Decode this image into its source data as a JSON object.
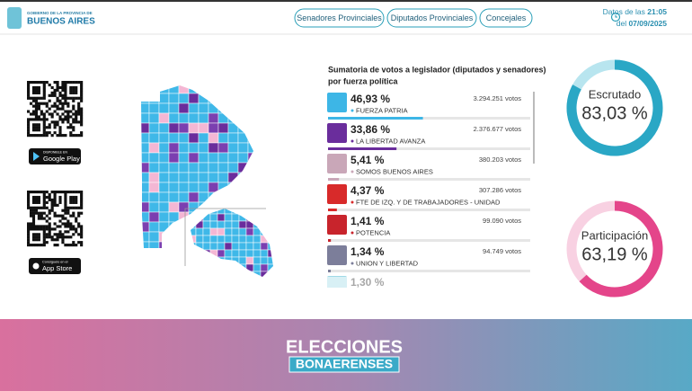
{
  "header": {
    "logo_small": "GOBIERNO DE LA PROVINCIA DE",
    "logo_main": "BUENOS AIRES",
    "tabs": [
      "Senadores Provinciales",
      "Diputados Provinciales",
      "Concejales"
    ],
    "update_prefix": "Datos de las",
    "update_time": "21:05",
    "date_prefix": "del",
    "update_date": "07/09/2025"
  },
  "apps": {
    "google_small": "DISPONIBLE EN",
    "google_main": "Google Play",
    "apple_small": "Consíguelo en el",
    "apple_main": "App Store"
  },
  "results": {
    "title_line1": "Sumatoria de votos a legislador (diputados y senadores)",
    "title_line2": "por fuerza política",
    "parties": [
      {
        "value": 46.93,
        "value_label": "46,93 %",
        "name": "FUERZA PATRIA",
        "votes": "3.294.251 votos",
        "color": "#3db6e6"
      },
      {
        "value": 33.86,
        "value_label": "33,86 %",
        "name": "LA LIBERTAD AVANZA",
        "votes": "2.376.677 votos",
        "color": "#6a2d9c"
      },
      {
        "value": 5.41,
        "value_label": "5,41 %",
        "name": "SOMOS BUENOS AIRES",
        "votes": "380.203 votos",
        "color": "#c9a7b8"
      },
      {
        "value": 4.37,
        "value_label": "4,37 %",
        "name": "FTE DE IZQ. Y DE TRABAJADORES - UNIDAD",
        "votes": "307.286 votos",
        "color": "#d82a2a"
      },
      {
        "value": 1.41,
        "value_label": "1,41 %",
        "name": "POTENCIA",
        "votes": "99.090 votos",
        "color": "#c8242c"
      },
      {
        "value": 1.34,
        "value_label": "1,34 %",
        "name": "UNION Y LIBERTAD",
        "votes": "94.749 votos",
        "color": "#7c7e9a"
      },
      {
        "value": 1.3,
        "value_label": "1,30 %",
        "color": "#9fd9e6"
      }
    ]
  },
  "gauges": [
    {
      "label": "Escrutado",
      "value": 83.03,
      "value_label": "83,03 %",
      "color": "#2aa7c5",
      "track": "#b8e5ef"
    },
    {
      "label": "Participación",
      "value": 63.19,
      "value_label": "63,19 %",
      "color": "#e4458a",
      "track": "#f8d1e2"
    }
  ],
  "footer": {
    "line1": "ELECCIONES",
    "line2": "BONAERENSES"
  }
}
